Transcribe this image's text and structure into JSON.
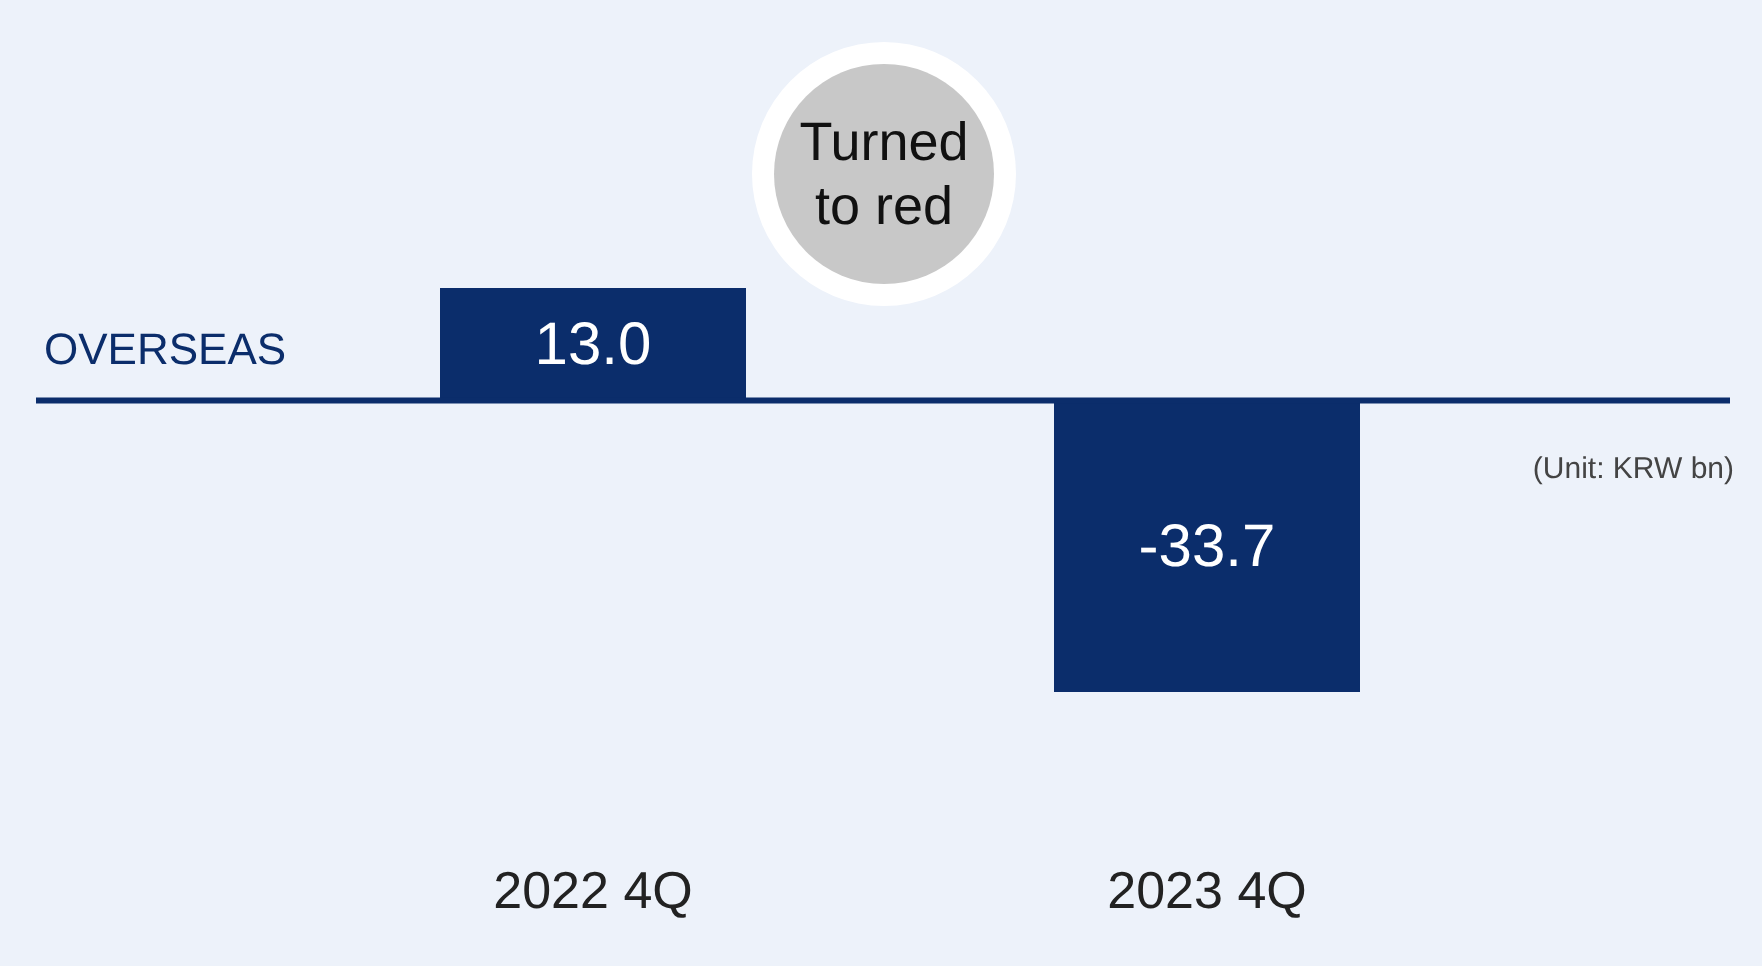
{
  "chart_data": {
    "type": "bar",
    "categories": [
      "2022 4Q",
      "2023 4Q"
    ],
    "series": [
      {
        "name": "OVERSEAS",
        "color": "#0b2d6b",
        "values": [
          13.0,
          -33.7
        ],
        "value_labels": [
          "13.0",
          "-33.7"
        ]
      }
    ],
    "ref_lines": [
      {
        "axis": "y",
        "value": 0,
        "color": "#0b2d6b"
      }
    ],
    "annotations": [
      "Turned to red",
      "(Unit: KRW bn)"
    ]
  }
}
